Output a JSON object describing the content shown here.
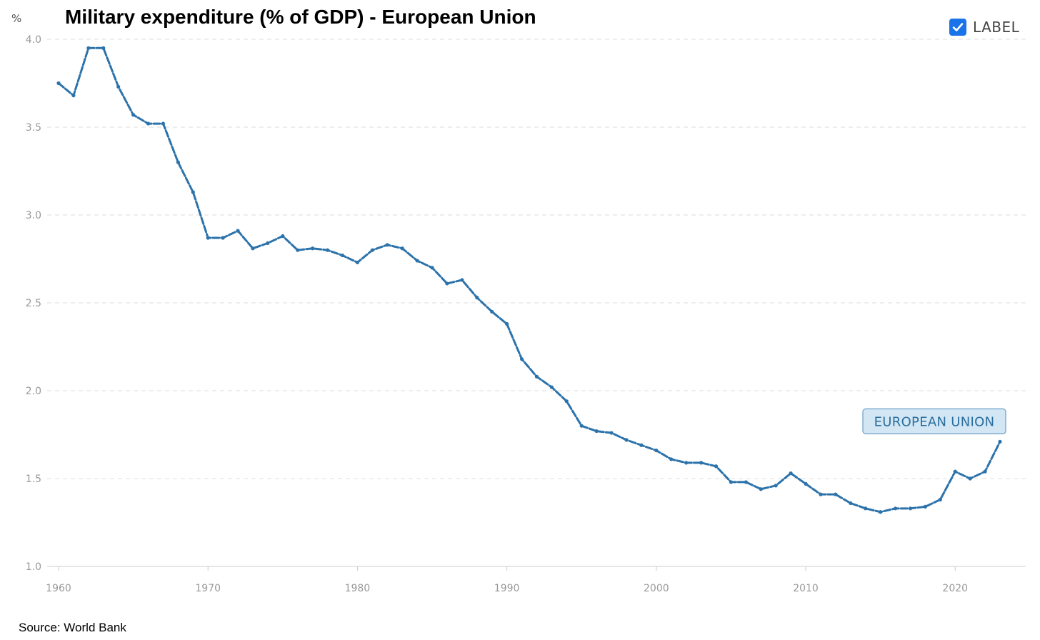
{
  "header": {
    "unit_label": "%",
    "legend_label": "LABEL"
  },
  "footer": {
    "source": "Source: World Bank"
  },
  "colors": {
    "line": "#2c73ab",
    "grid": "#dddddd",
    "label_bg": "#d3e6f4",
    "label_border": "#6c9fc6",
    "checkbox": "#1a73e8"
  },
  "chart_data": {
    "type": "line",
    "title": "Military expenditure (% of GDP) - European Union",
    "xlabel": "",
    "ylabel": "%",
    "xlim": [
      1960,
      2023
    ],
    "ylim": [
      1.0,
      4.0
    ],
    "y_ticks": [
      "1.0",
      "1.5",
      "2.0",
      "2.5",
      "3.0",
      "3.5",
      "4.0"
    ],
    "x_ticks": [
      "1960",
      "1970",
      "1980",
      "1990",
      "2000",
      "2010",
      "2020"
    ],
    "grid": true,
    "series": [
      {
        "name": "EUROPEAN UNION",
        "x": [
          1960,
          1961,
          1962,
          1963,
          1964,
          1965,
          1966,
          1967,
          1968,
          1969,
          1970,
          1971,
          1972,
          1973,
          1974,
          1975,
          1976,
          1977,
          1978,
          1979,
          1980,
          1981,
          1982,
          1983,
          1984,
          1985,
          1986,
          1987,
          1988,
          1989,
          1990,
          1991,
          1992,
          1993,
          1994,
          1995,
          1996,
          1997,
          1998,
          1999,
          2000,
          2001,
          2002,
          2003,
          2004,
          2005,
          2006,
          2007,
          2008,
          2009,
          2010,
          2011,
          2012,
          2013,
          2014,
          2015,
          2016,
          2017,
          2018,
          2019,
          2020,
          2021,
          2022,
          2023
        ],
        "values": [
          3.75,
          3.68,
          3.95,
          3.95,
          3.73,
          3.57,
          3.52,
          3.52,
          3.3,
          3.13,
          2.87,
          2.87,
          2.91,
          2.81,
          2.84,
          2.88,
          2.8,
          2.81,
          2.8,
          2.77,
          2.73,
          2.8,
          2.83,
          2.81,
          2.74,
          2.7,
          2.61,
          2.63,
          2.53,
          2.45,
          2.38,
          2.18,
          2.08,
          2.02,
          1.94,
          1.8,
          1.77,
          1.76,
          1.72,
          1.69,
          1.66,
          1.61,
          1.59,
          1.59,
          1.57,
          1.48,
          1.48,
          1.44,
          1.46,
          1.53,
          1.47,
          1.41,
          1.41,
          1.36,
          1.33,
          1.31,
          1.33,
          1.33,
          1.34,
          1.38,
          1.54,
          1.5,
          1.54,
          1.71
        ]
      }
    ]
  }
}
